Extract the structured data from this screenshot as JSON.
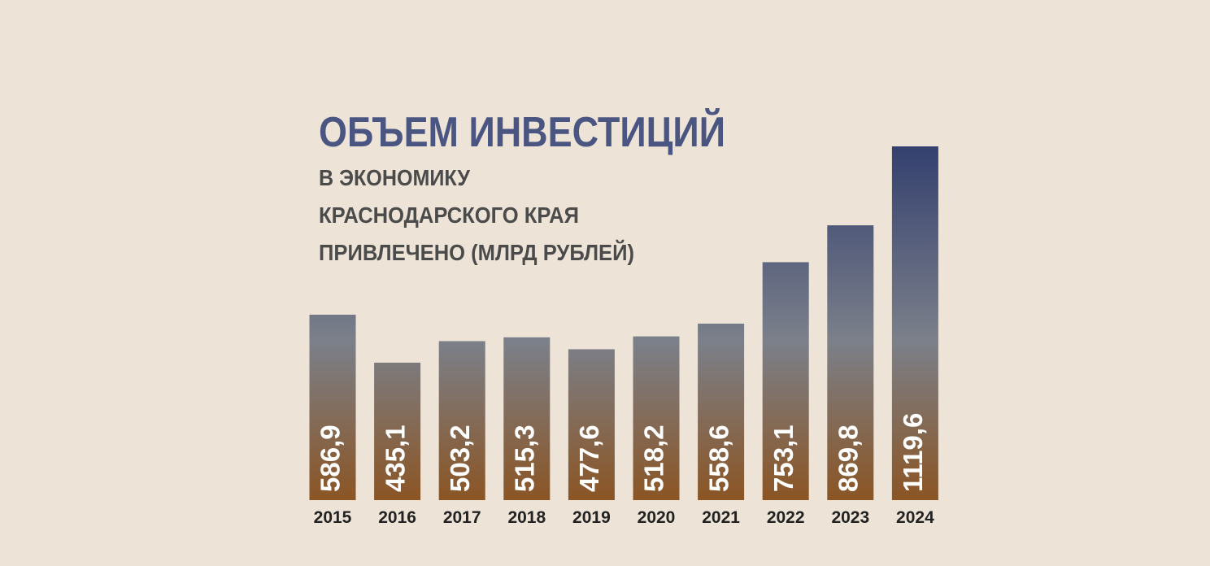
{
  "chart_data": {
    "type": "bar",
    "title": "ОБЪЕМ ИНВЕСТИЦИЙ",
    "subtitle": [
      "В ЭКОНОМИКУ",
      "КРАСНОДАРСКОГО КРАЯ",
      "ПРИВЛЕЧЕНО (МЛРД РУБЛЕЙ)"
    ],
    "categories": [
      "2015",
      "2016",
      "2017",
      "2018",
      "2019",
      "2020",
      "2021",
      "2022",
      "2023",
      "2024"
    ],
    "values": [
      586.9,
      435.1,
      503.2,
      515.3,
      477.6,
      518.2,
      558.6,
      753.1,
      869.8,
      1119.6
    ],
    "value_labels": [
      "586,9",
      "435,1",
      "503,2",
      "515,3",
      "477,6",
      "518,2",
      "558,6",
      "753,1",
      "869,8",
      "1119,6"
    ],
    "colors": [
      "#34406f",
      "#7b808a",
      "#8b5524"
    ]
  }
}
